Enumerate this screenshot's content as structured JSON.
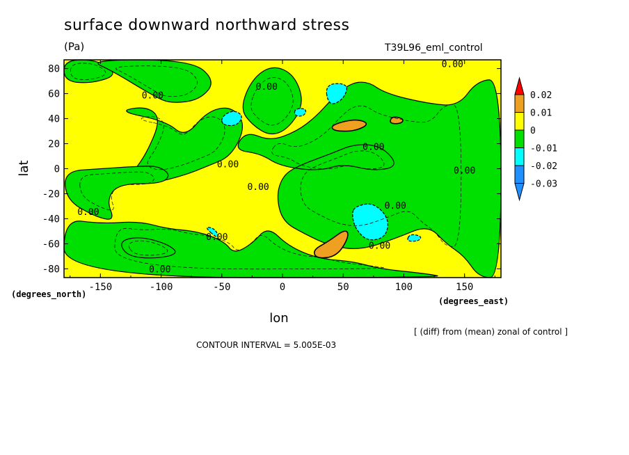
{
  "header": {
    "title": "surface downward northward stress",
    "units": "(Pa)",
    "experiment": "T39L96_eml_control"
  },
  "footer": {
    "contour_interval": "CONTOUR INTERVAL = 5.005E-03",
    "diff_note": "[ (diff) from (mean) zonal of control ]"
  },
  "chart_data": {
    "type": "heatmap",
    "title": "surface downward northward stress",
    "xlabel": "lon",
    "ylabel": "lat",
    "x_units": "(degrees_east)",
    "y_units": "(degrees_north)",
    "xlim": [
      -180,
      180
    ],
    "ylim": [
      -87,
      87
    ],
    "x_ticks": [
      -150,
      -100,
      -50,
      0,
      50,
      100,
      150
    ],
    "y_ticks": [
      -80,
      -60,
      -40,
      -20,
      0,
      20,
      40,
      60,
      80
    ],
    "colorbar": {
      "labels": [
        "0.02",
        "0.01",
        "0",
        "-0.01",
        "-0.02",
        "-0.03"
      ],
      "levels": [
        0.02,
        0.01,
        0,
        -0.01,
        -0.02,
        -0.03
      ],
      "colors": [
        "#ff0000",
        "#f0a020",
        "#ffff00",
        "#00e000",
        "#00ffff",
        "#1e90ff",
        "#1e90ff"
      ]
    },
    "contour_labels": [
      {
        "text": "0.00",
        "lon": -107,
        "lat": 58
      },
      {
        "text": "0.00",
        "lon": -13,
        "lat": 65
      },
      {
        "text": "0.00",
        "lon": 140,
        "lat": 83
      },
      {
        "text": "0.00",
        "lon": -45,
        "lat": 3
      },
      {
        "text": "0.00",
        "lon": 75,
        "lat": 17
      },
      {
        "text": "0.00",
        "lon": 150,
        "lat": -2
      },
      {
        "text": "0.00",
        "lon": -20,
        "lat": -15
      },
      {
        "text": "0.00",
        "lon": 93,
        "lat": -30
      },
      {
        "text": "0.00",
        "lon": -160,
        "lat": -35
      },
      {
        "text": "0.00",
        "lon": -54,
        "lat": -55
      },
      {
        "text": "0.00",
        "lon": 80,
        "lat": -62
      },
      {
        "text": "0.00",
        "lon": -101,
        "lat": -81
      }
    ],
    "regions": [
      {
        "level": "-0.01",
        "points": [
          [
            -180,
            87
          ],
          [
            -152,
            87
          ],
          [
            -135,
            75
          ],
          [
            -158,
            68
          ],
          [
            -180,
            70
          ]
        ]
      },
      {
        "level": "-0.01",
        "points": [
          [
            -160,
            87
          ],
          [
            -75,
            87
          ],
          [
            -55,
            70
          ],
          [
            -68,
            55
          ],
          [
            -92,
            52
          ],
          [
            -106,
            58
          ],
          [
            -140,
            78
          ]
        ]
      },
      {
        "level": "-0.01",
        "points": [
          [
            -136,
            46
          ],
          [
            -112,
            50
          ],
          [
            -100,
            40
          ],
          [
            -112,
            12
          ],
          [
            -125,
            -5
          ],
          [
            -108,
            -12
          ],
          [
            -80,
            -5
          ],
          [
            -62,
            2
          ],
          [
            -42,
            10
          ],
          [
            -30,
            35
          ],
          [
            -42,
            50
          ],
          [
            -62,
            46
          ],
          [
            -80,
            25
          ],
          [
            -96,
            38
          ]
        ]
      },
      {
        "level": "-0.01",
        "points": [
          [
            -25,
            72
          ],
          [
            -8,
            83
          ],
          [
            10,
            75
          ],
          [
            18,
            52
          ],
          [
            5,
            32
          ],
          [
            -10,
            26
          ],
          [
            -25,
            35
          ],
          [
            -35,
            48
          ]
        ]
      },
      {
        "level": "-0.01",
        "points": [
          [
            -30,
            30
          ],
          [
            -10,
            22
          ],
          [
            12,
            30
          ],
          [
            28,
            42
          ],
          [
            40,
            55
          ],
          [
            55,
            68
          ],
          [
            70,
            70
          ],
          [
            85,
            60
          ],
          [
            120,
            52
          ],
          [
            145,
            50
          ],
          [
            160,
            70
          ],
          [
            180,
            72
          ],
          [
            180,
            -87
          ],
          [
            162,
            -87
          ],
          [
            150,
            -70
          ],
          [
            135,
            -60
          ],
          [
            120,
            -45
          ],
          [
            95,
            -55
          ],
          [
            65,
            -65
          ],
          [
            40,
            -62
          ],
          [
            18,
            -52
          ],
          [
            0,
            -42
          ],
          [
            -5,
            -22
          ],
          [
            0,
            -6
          ],
          [
            12,
            2
          ],
          [
            40,
            12
          ],
          [
            60,
            20
          ],
          [
            82,
            18
          ],
          [
            96,
            2
          ],
          [
            75,
            -2
          ],
          [
            50,
            4
          ],
          [
            30,
            -2
          ],
          [
            -2,
            2
          ],
          [
            -18,
            12
          ],
          [
            -40,
            15
          ]
        ]
      },
      {
        "level": "-0.01",
        "points": [
          [
            -180,
            -2
          ],
          [
            -150,
            0
          ],
          [
            -118,
            2
          ],
          [
            -102,
            2
          ],
          [
            -92,
            -5
          ],
          [
            -100,
            -12
          ],
          [
            -135,
            -12
          ],
          [
            -145,
            -25
          ],
          [
            -138,
            -42
          ],
          [
            -155,
            -38
          ],
          [
            -178,
            -25
          ]
        ]
      },
      {
        "level": "-0.01",
        "points": [
          [
            -180,
            -40
          ],
          [
            -150,
            -44
          ],
          [
            -118,
            -42
          ],
          [
            -95,
            -48
          ],
          [
            -70,
            -50
          ],
          [
            -48,
            -58
          ],
          [
            -40,
            -68
          ],
          [
            -25,
            -60
          ],
          [
            -12,
            -46
          ],
          [
            5,
            -62
          ],
          [
            30,
            -72
          ],
          [
            58,
            -74
          ],
          [
            80,
            -80
          ],
          [
            120,
            -84
          ],
          [
            135,
            -87
          ],
          [
            -180,
            -87
          ]
        ]
      },
      {
        "level": "-0.01",
        "points": [
          [
            -135,
            -58
          ],
          [
            -118,
            -54
          ],
          [
            -95,
            -60
          ],
          [
            -85,
            -68
          ],
          [
            -105,
            -72
          ],
          [
            -128,
            -70
          ]
        ]
      },
      {
        "level": "-0.02",
        "points": [
          [
            -50,
            42
          ],
          [
            -40,
            47
          ],
          [
            -32,
            42
          ],
          [
            -38,
            34
          ],
          [
            -50,
            35
          ]
        ]
      },
      {
        "level": "-0.02",
        "points": [
          [
            35,
            68
          ],
          [
            55,
            68
          ],
          [
            50,
            55
          ],
          [
            38,
            50
          ]
        ]
      },
      {
        "level": "-0.02",
        "points": [
          [
            10,
            48
          ],
          [
            20,
            48
          ],
          [
            18,
            42
          ],
          [
            10,
            42
          ]
        ]
      },
      {
        "level": "-0.02",
        "points": [
          [
            60,
            -30
          ],
          [
            75,
            -27
          ],
          [
            88,
            -40
          ],
          [
            85,
            -55
          ],
          [
            70,
            -58
          ],
          [
            60,
            -48
          ],
          [
            57,
            -36
          ]
        ]
      },
      {
        "level": "-0.02",
        "points": [
          [
            -65,
            -46
          ],
          [
            -55,
            -48
          ],
          [
            -52,
            -57
          ],
          -1
        ]
      },
      {
        "level": "-0.02",
        "points": [
          [
            105,
            -52
          ],
          [
            115,
            -54
          ],
          [
            112,
            -58
          ],
          [
            102,
            -58
          ]
        ]
      },
      {
        "level": "0.01",
        "points": [
          [
            40,
            35
          ],
          [
            60,
            40
          ],
          [
            72,
            36
          ],
          [
            60,
            30
          ],
          [
            42,
            30
          ]
        ]
      },
      {
        "level": "0.01",
        "points": [
          [
            90,
            42
          ],
          [
            100,
            40
          ],
          [
            98,
            36
          ],
          [
            88,
            36
          ]
        ]
      },
      {
        "level": "0.01",
        "points": [
          [
            25,
            -65
          ],
          [
            38,
            -58
          ],
          [
            52,
            -48
          ],
          [
            55,
            -54
          ],
          [
            45,
            -70
          ],
          [
            28,
            -72
          ]
        ]
      }
    ]
  }
}
